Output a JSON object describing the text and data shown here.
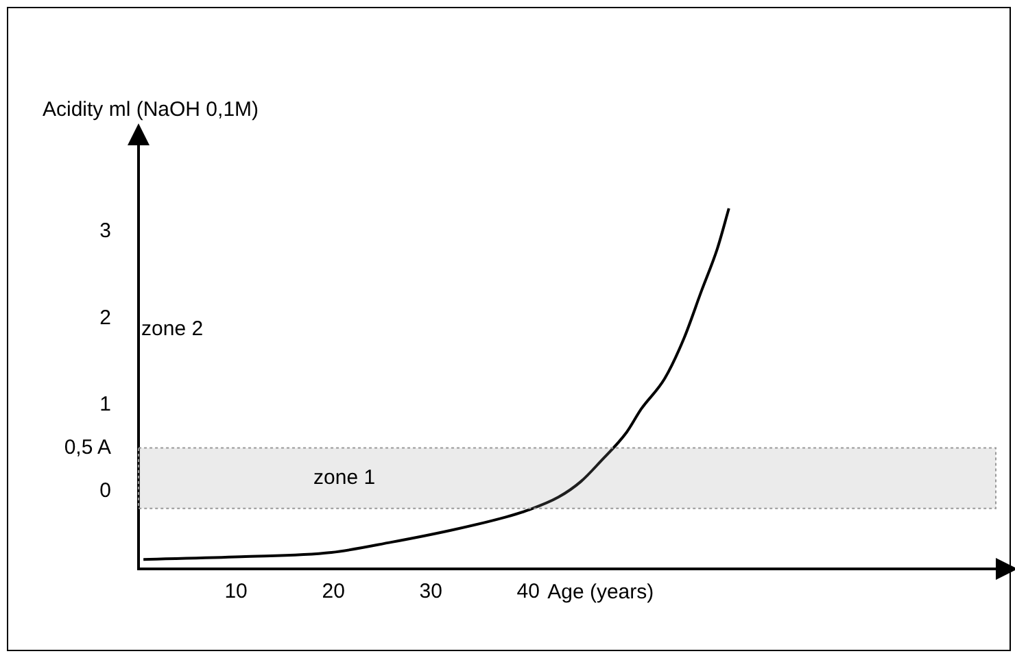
{
  "chart_data": {
    "type": "line",
    "ylabel": "Acidity ml (NaOH 0,1M)",
    "xlabel": "Age (years)",
    "xlim": [
      0,
      88
    ],
    "xticks": [
      10,
      20,
      30,
      40
    ],
    "ylim": [
      -0.9,
      4
    ],
    "yticks": [
      0,
      {
        "value": 0.5,
        "label": "0,5 A"
      },
      1,
      2,
      3
    ],
    "series": [
      {
        "color": "#000000",
        "x": [
          0.5,
          10.5,
          19.8,
          26,
          32.2,
          37.7,
          40,
          43.1,
          45.4,
          47.4,
          50.1,
          51.6,
          54,
          56,
          57.8,
          59.4,
          60.6
        ],
        "values": [
          -0.79,
          -0.76,
          -0.71,
          -0.59,
          -0.45,
          -0.3,
          -0.22,
          -0.07,
          0.11,
          0.34,
          0.68,
          0.95,
          1.3,
          1.77,
          2.32,
          2.8,
          3.27
        ]
      }
    ],
    "bands": [
      {
        "axis": "y",
        "from": -0.2,
        "to": 0.5,
        "label": "zone 1",
        "color": "#999999"
      }
    ],
    "annotations": [
      "zone 2"
    ],
    "grid": false,
    "legend": false,
    "marker": "none",
    "line_style": "solid"
  }
}
